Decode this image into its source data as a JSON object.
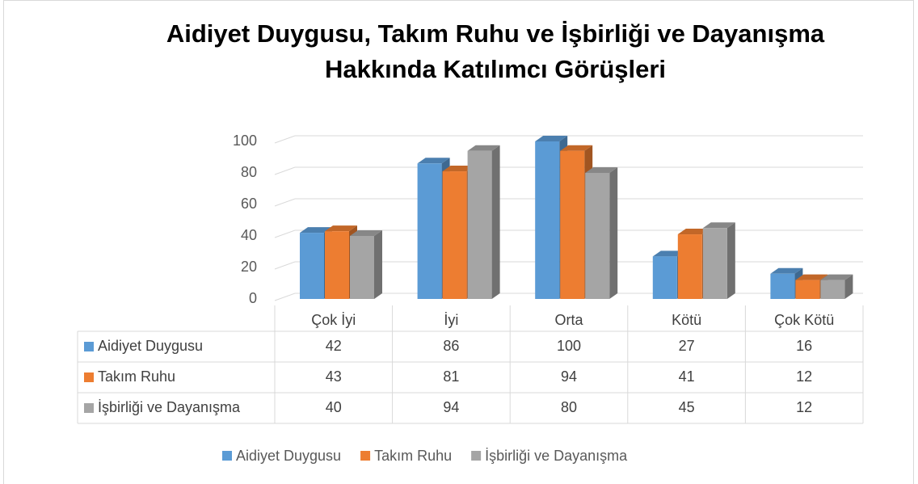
{
  "chart_data": {
    "type": "bar3d",
    "title": "Aidiyet Duygusu, Takım Ruhu ve İşbirliği ve Dayanışma Hakkında Katılımcı Görüşleri",
    "categories": [
      "Çok İyi",
      "İyi",
      "Orta",
      "Kötü",
      "Çok Kötü"
    ],
    "series": [
      {
        "name": "Aidiyet Duygusu",
        "color": "#5b9bd5",
        "values": [
          42,
          86,
          100,
          27,
          16
        ]
      },
      {
        "name": "Takım Ruhu",
        "color": "#ed7d31",
        "values": [
          43,
          81,
          94,
          41,
          12
        ]
      },
      {
        "name": "İşbirliği ve Dayanışma",
        "color": "#a5a5a5",
        "values": [
          40,
          94,
          80,
          45,
          12
        ]
      }
    ],
    "ylim": [
      0,
      100
    ],
    "yticks": [
      0,
      20,
      40,
      60,
      80,
      100
    ],
    "grid": true,
    "data_table": true,
    "legend": "bottom"
  }
}
